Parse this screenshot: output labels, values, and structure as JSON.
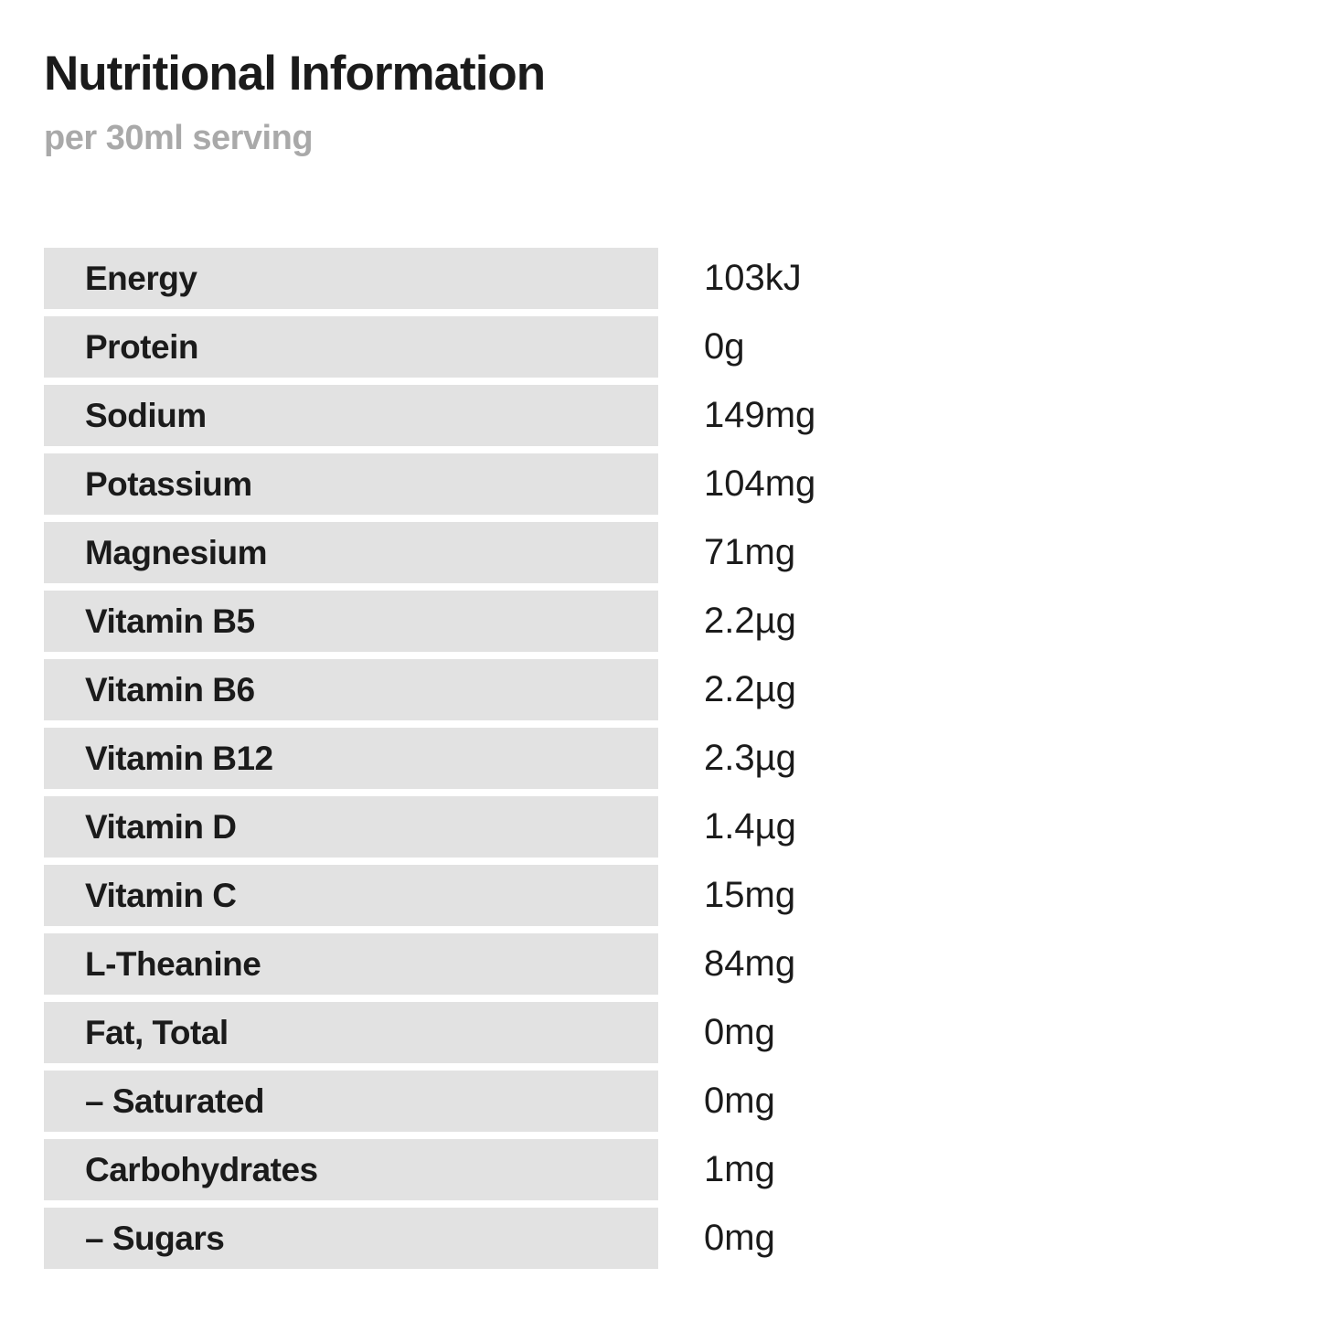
{
  "title": "Nutritional Information",
  "subtitle": "per 30ml serving",
  "table": {
    "rows": [
      {
        "label": "Energy",
        "value": "103kJ"
      },
      {
        "label": "Protein",
        "value": "0g"
      },
      {
        "label": "Sodium",
        "value": "149mg"
      },
      {
        "label": "Potassium",
        "value": "104mg"
      },
      {
        "label": "Magnesium",
        "value": "71mg"
      },
      {
        "label": "Vitamin B5",
        "value": "2.2µg"
      },
      {
        "label": "Vitamin B6",
        "value": "2.2µg"
      },
      {
        "label": "Vitamin B12",
        "value": "2.3µg"
      },
      {
        "label": "Vitamin D",
        "value": "1.4µg"
      },
      {
        "label": "Vitamin C",
        "value": "15mg"
      },
      {
        "label": "L-Theanine",
        "value": "84mg"
      },
      {
        "label": "Fat, Total",
        "value": "0mg"
      },
      {
        "label": "– Saturated",
        "value": "0mg"
      },
      {
        "label": "Carbohydrates",
        "value": "1mg"
      },
      {
        "label": "– Sugars",
        "value": "0mg"
      }
    ]
  },
  "colors": {
    "background": "#ffffff",
    "row_bar": "#e2e2e2",
    "text": "#1b1b1b",
    "subtitle_text": "#a9a9a9"
  }
}
